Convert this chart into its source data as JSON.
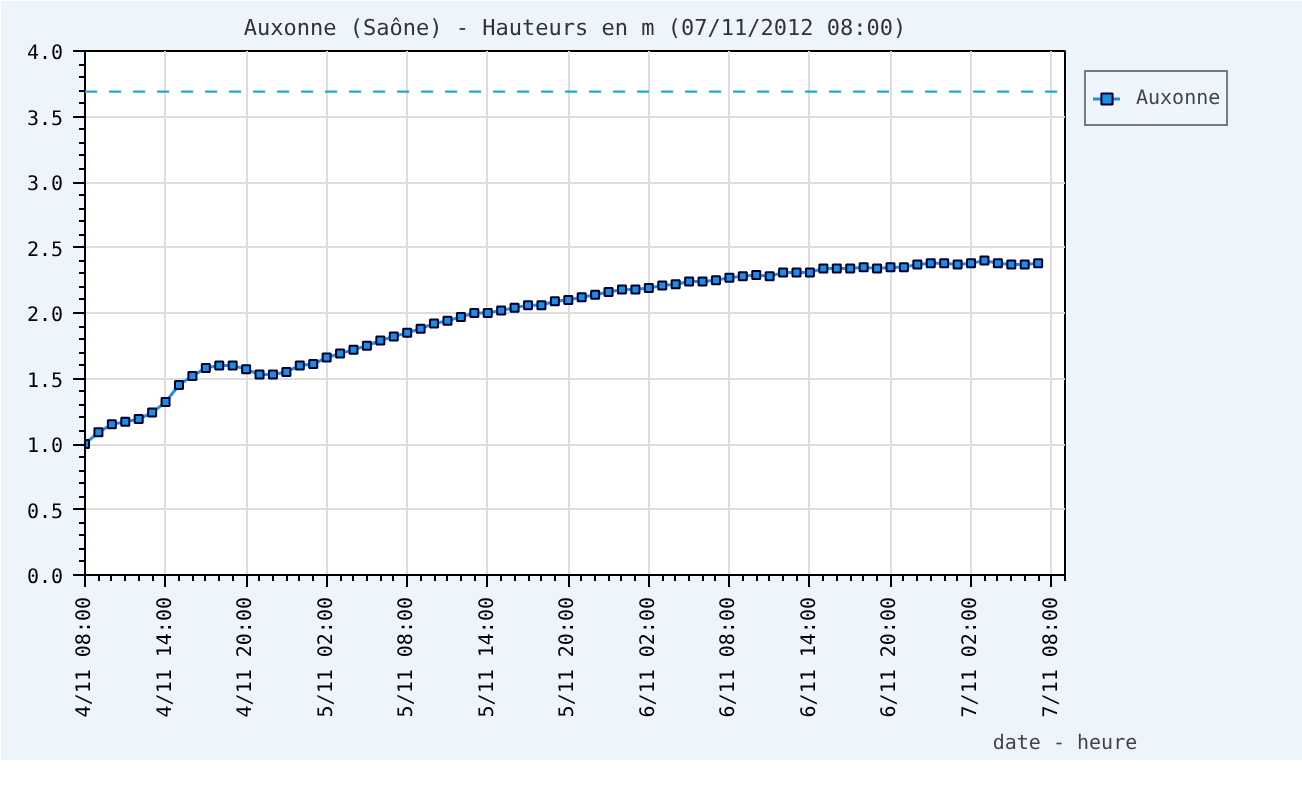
{
  "chart_data": {
    "type": "line",
    "title": "Auxonne (Saône) - Hauteurs en m (07/11/2012 08:00)",
    "xlabel": "date - heure",
    "x": [
      "2012-11-04T08:00",
      "2012-11-04T09:00",
      "2012-11-04T10:00",
      "2012-11-04T11:00",
      "2012-11-04T12:00",
      "2012-11-04T13:00",
      "2012-11-04T14:00",
      "2012-11-04T15:00",
      "2012-11-04T16:00",
      "2012-11-04T17:00",
      "2012-11-04T18:00",
      "2012-11-04T19:00",
      "2012-11-04T20:00",
      "2012-11-04T21:00",
      "2012-11-04T22:00",
      "2012-11-04T23:00",
      "2012-11-05T00:00",
      "2012-11-05T01:00",
      "2012-11-05T02:00",
      "2012-11-05T03:00",
      "2012-11-05T04:00",
      "2012-11-05T05:00",
      "2012-11-05T06:00",
      "2012-11-05T07:00",
      "2012-11-05T08:00",
      "2012-11-05T09:00",
      "2012-11-05T10:00",
      "2012-11-05T11:00",
      "2012-11-05T12:00",
      "2012-11-05T13:00",
      "2012-11-05T14:00",
      "2012-11-05T15:00",
      "2012-11-05T16:00",
      "2012-11-05T17:00",
      "2012-11-05T18:00",
      "2012-11-05T19:00",
      "2012-11-05T20:00",
      "2012-11-05T21:00",
      "2012-11-05T22:00",
      "2012-11-05T23:00",
      "2012-11-06T00:00",
      "2012-11-06T01:00",
      "2012-11-06T02:00",
      "2012-11-06T03:00",
      "2012-11-06T04:00",
      "2012-11-06T05:00",
      "2012-11-06T06:00",
      "2012-11-06T07:00",
      "2012-11-06T08:00",
      "2012-11-06T09:00",
      "2012-11-06T10:00",
      "2012-11-06T11:00",
      "2012-11-06T12:00",
      "2012-11-06T13:00",
      "2012-11-06T14:00",
      "2012-11-06T15:00",
      "2012-11-06T16:00",
      "2012-11-06T17:00",
      "2012-11-06T18:00",
      "2012-11-06T19:00",
      "2012-11-06T20:00",
      "2012-11-06T21:00",
      "2012-11-06T22:00",
      "2012-11-06T23:00",
      "2012-11-07T00:00",
      "2012-11-07T01:00",
      "2012-11-07T02:00",
      "2012-11-07T03:00",
      "2012-11-07T04:00",
      "2012-11-07T05:00",
      "2012-11-07T06:00",
      "2012-11-07T07:00"
    ],
    "series": [
      {
        "name": "Auxonne",
        "color": "#1e8fe0",
        "values": [
          1.0,
          1.09,
          1.15,
          1.17,
          1.19,
          1.24,
          1.32,
          1.45,
          1.52,
          1.58,
          1.6,
          1.6,
          1.57,
          1.53,
          1.53,
          1.55,
          1.6,
          1.61,
          1.66,
          1.69,
          1.72,
          1.75,
          1.79,
          1.82,
          1.85,
          1.88,
          1.92,
          1.94,
          1.97,
          2.0,
          2.0,
          2.02,
          2.04,
          2.06,
          2.06,
          2.09,
          2.1,
          2.12,
          2.14,
          2.16,
          2.18,
          2.18,
          2.19,
          2.21,
          2.22,
          2.24,
          2.24,
          2.25,
          2.27,
          2.28,
          2.29,
          2.28,
          2.31,
          2.31,
          2.31,
          2.34,
          2.34,
          2.34,
          2.35,
          2.34,
          2.35,
          2.35,
          2.37,
          2.38,
          2.38,
          2.37,
          2.38,
          2.4,
          2.38,
          2.37,
          2.37,
          2.38
        ]
      }
    ],
    "xlim": [
      "2012-11-04T08:00",
      "2012-11-07T09:00"
    ],
    "xticks": [
      {
        "value": "2012-11-04T08:00",
        "label": "4/11 08:00"
      },
      {
        "value": "2012-11-04T14:00",
        "label": "4/11 14:00"
      },
      {
        "value": "2012-11-04T20:00",
        "label": "4/11 20:00"
      },
      {
        "value": "2012-11-05T02:00",
        "label": "5/11 02:00"
      },
      {
        "value": "2012-11-05T08:00",
        "label": "5/11 08:00"
      },
      {
        "value": "2012-11-05T14:00",
        "label": "5/11 14:00"
      },
      {
        "value": "2012-11-05T20:00",
        "label": "5/11 20:00"
      },
      {
        "value": "2012-11-06T02:00",
        "label": "6/11 02:00"
      },
      {
        "value": "2012-11-06T08:00",
        "label": "6/11 08:00"
      },
      {
        "value": "2012-11-06T14:00",
        "label": "6/11 14:00"
      },
      {
        "value": "2012-11-06T20:00",
        "label": "6/11 20:00"
      },
      {
        "value": "2012-11-07T02:00",
        "label": "7/11 02:00"
      },
      {
        "value": "2012-11-07T08:00",
        "label": "7/11 08:00"
      }
    ],
    "ylim": [
      0,
      4
    ],
    "yticks": [
      {
        "value": 0,
        "label": "0.0"
      },
      {
        "value": 0.5,
        "label": "0.5"
      },
      {
        "value": 1,
        "label": "1.0"
      },
      {
        "value": 1.5,
        "label": "1.5"
      },
      {
        "value": 2,
        "label": "2.0"
      },
      {
        "value": 2.5,
        "label": "2.5"
      },
      {
        "value": 3,
        "label": "3.0"
      },
      {
        "value": 3.5,
        "label": "3.5"
      },
      {
        "value": 4,
        "label": "4.0"
      }
    ],
    "ref_lines": [
      {
        "axis": "y",
        "value": 3.69,
        "color": "#22aacc",
        "line_style": "dashed"
      }
    ],
    "grid": true,
    "legend": "top right",
    "marker": "square",
    "line_style": "solid"
  }
}
